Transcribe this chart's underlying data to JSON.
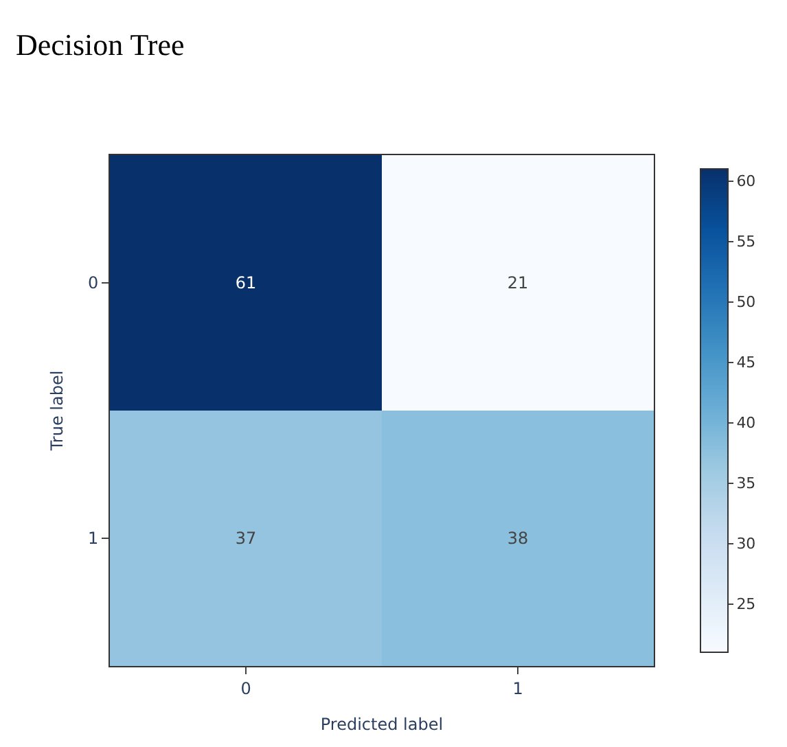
{
  "chart_data": {
    "type": "heatmap",
    "title": "Decision Tree",
    "xlabel": "Predicted label",
    "ylabel": "True label",
    "categories": [
      "0",
      "1"
    ],
    "y_categories": [
      "0",
      "1"
    ],
    "cells": [
      [
        61,
        21
      ],
      [
        37,
        38
      ]
    ],
    "data_labels": true,
    "clim": [
      21,
      61
    ],
    "cticks": [
      25,
      30,
      35,
      40,
      45,
      50,
      55,
      60
    ]
  }
}
